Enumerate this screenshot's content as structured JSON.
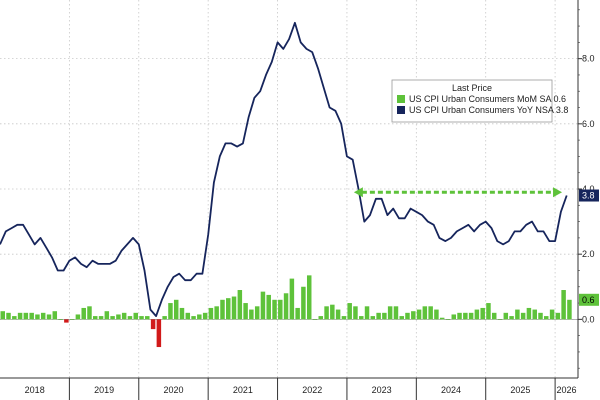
{
  "chart_data": {
    "type": "line",
    "title": "",
    "xlabel": "",
    "ylabel": "",
    "ylim": [
      -1.8,
      9.8
    ],
    "xlim": [
      2018.0,
      2026.33
    ],
    "y_ticks": [
      0.0,
      2.0,
      4.0,
      6.0,
      8.0
    ],
    "y_tick_labels": [
      "0.0",
      "2.0",
      "4.0",
      "6.0",
      "8.0"
    ],
    "x_ticks": [
      "2018",
      "2019",
      "2020",
      "2021",
      "2022",
      "2023",
      "2024",
      "2025",
      "2026"
    ],
    "grid": true,
    "legend_position": "upper-right",
    "legend_title": "Last Price",
    "series": [
      {
        "name": "US CPI Urban Consumers MoM SA",
        "type": "bar",
        "color": "#5ec23a",
        "last_value": "0.6",
        "x": [
          2018.0,
          2018.083,
          2018.167,
          2018.25,
          2018.333,
          2018.417,
          2018.5,
          2018.583,
          2018.667,
          2018.75,
          2018.833,
          2018.917,
          2019.0,
          2019.083,
          2019.167,
          2019.25,
          2019.333,
          2019.417,
          2019.5,
          2019.583,
          2019.667,
          2019.75,
          2019.833,
          2019.917,
          2020.0,
          2020.083,
          2020.167,
          2020.25,
          2020.333,
          2020.417,
          2020.5,
          2020.583,
          2020.667,
          2020.75,
          2020.833,
          2020.917,
          2021.0,
          2021.083,
          2021.167,
          2021.25,
          2021.333,
          2021.417,
          2021.5,
          2021.583,
          2021.667,
          2021.75,
          2021.833,
          2021.917,
          2022.0,
          2022.083,
          2022.167,
          2022.25,
          2022.333,
          2022.417,
          2022.5,
          2022.583,
          2022.667,
          2022.75,
          2022.833,
          2022.917,
          2023.0,
          2023.083,
          2023.167,
          2023.25,
          2023.333,
          2023.417,
          2023.5,
          2023.583,
          2023.667,
          2023.75,
          2023.833,
          2023.917,
          2024.0,
          2024.083,
          2024.167,
          2024.25,
          2024.333,
          2024.417,
          2024.5,
          2024.583,
          2024.667,
          2024.75,
          2024.833,
          2024.917,
          2025.0,
          2025.083,
          2025.167,
          2025.25,
          2025.333,
          2025.417,
          2025.5,
          2025.583,
          2025.667,
          2025.75,
          2025.833,
          2025.917,
          2026.0,
          2026.083,
          2026.167
        ],
        "values": [
          0.25,
          0.2,
          0.1,
          0.2,
          0.2,
          0.2,
          0.15,
          0.2,
          0.15,
          0.25,
          0.0,
          -0.1,
          0.0,
          0.15,
          0.35,
          0.4,
          0.1,
          0.1,
          0.25,
          0.1,
          0.15,
          0.2,
          0.1,
          0.2,
          0.1,
          0.1,
          -0.3,
          -0.85,
          0.1,
          0.5,
          0.6,
          0.35,
          0.2,
          0.1,
          0.15,
          0.2,
          0.35,
          0.4,
          0.6,
          0.65,
          0.7,
          0.9,
          0.5,
          0.3,
          0.4,
          0.85,
          0.75,
          0.6,
          0.6,
          0.8,
          1.25,
          0.35,
          1.0,
          1.35,
          0.0,
          0.1,
          0.4,
          0.45,
          0.3,
          0.1,
          0.5,
          0.4,
          0.1,
          0.4,
          0.1,
          0.2,
          0.2,
          0.4,
          0.4,
          0.1,
          0.2,
          0.25,
          0.3,
          0.4,
          0.4,
          0.3,
          0.05,
          0.0,
          0.15,
          0.2,
          0.2,
          0.2,
          0.3,
          0.35,
          0.5,
          0.2,
          0.0,
          0.2,
          0.1,
          0.3,
          0.2,
          0.35,
          0.3,
          0.2,
          0.1,
          0.3,
          0.2,
          0.9,
          0.6
        ]
      },
      {
        "name": "US CPI Urban Consumers YoY NSA",
        "type": "line",
        "color": "#16255c",
        "last_value": "3.8",
        "x": [
          2018.0,
          2018.083,
          2018.167,
          2018.25,
          2018.333,
          2018.417,
          2018.5,
          2018.583,
          2018.667,
          2018.75,
          2018.833,
          2018.917,
          2019.0,
          2019.083,
          2019.167,
          2019.25,
          2019.333,
          2019.417,
          2019.5,
          2019.583,
          2019.667,
          2019.75,
          2019.833,
          2019.917,
          2020.0,
          2020.083,
          2020.167,
          2020.25,
          2020.333,
          2020.417,
          2020.5,
          2020.583,
          2020.667,
          2020.75,
          2020.833,
          2020.917,
          2021.0,
          2021.083,
          2021.167,
          2021.25,
          2021.333,
          2021.417,
          2021.5,
          2021.583,
          2021.667,
          2021.75,
          2021.833,
          2021.917,
          2022.0,
          2022.083,
          2022.167,
          2022.25,
          2022.333,
          2022.417,
          2022.5,
          2022.583,
          2022.667,
          2022.75,
          2022.833,
          2022.917,
          2023.0,
          2023.083,
          2023.167,
          2023.25,
          2023.333,
          2023.417,
          2023.5,
          2023.583,
          2023.667,
          2023.75,
          2023.833,
          2023.917,
          2024.0,
          2024.083,
          2024.167,
          2024.25,
          2024.333,
          2024.417,
          2024.5,
          2024.583,
          2024.667,
          2024.75,
          2024.833,
          2024.917,
          2025.0,
          2025.083,
          2025.167,
          2025.25,
          2025.333,
          2025.417,
          2025.5,
          2025.583,
          2025.667,
          2025.75,
          2025.833,
          2025.917,
          2026.0,
          2026.083,
          2026.167
        ],
        "values": [
          2.3,
          2.7,
          2.8,
          2.9,
          2.9,
          2.6,
          2.3,
          2.5,
          2.2,
          1.9,
          1.5,
          1.5,
          1.8,
          1.9,
          1.7,
          1.6,
          1.8,
          1.7,
          1.7,
          1.7,
          1.8,
          2.1,
          2.3,
          2.5,
          2.3,
          1.5,
          0.3,
          0.1,
          0.6,
          1.0,
          1.3,
          1.4,
          1.2,
          1.2,
          1.4,
          1.4,
          2.6,
          4.2,
          5.0,
          5.4,
          5.4,
          5.3,
          5.4,
          6.2,
          6.8,
          7.0,
          7.5,
          7.9,
          8.5,
          8.3,
          8.6,
          9.1,
          8.5,
          8.3,
          8.2,
          7.7,
          7.1,
          6.5,
          6.4,
          6.0,
          5.0,
          4.9,
          4.0,
          3.0,
          3.2,
          3.7,
          3.7,
          3.2,
          3.4,
          3.1,
          3.1,
          3.4,
          3.3,
          3.2,
          3.0,
          2.9,
          2.5,
          2.4,
          2.5,
          2.7,
          2.8,
          2.9,
          2.7,
          2.9,
          3.0,
          2.8,
          2.4,
          2.3,
          2.4,
          2.7,
          2.7,
          2.9,
          3.0,
          2.7,
          2.7,
          2.4,
          2.4,
          3.3,
          3.8
        ]
      }
    ],
    "annotations": [
      {
        "type": "horizontal-dashed-arrow",
        "color": "#5ec23a",
        "y": 3.9,
        "x_start": 2023.1,
        "x_end": 2026.1
      }
    ],
    "right_axis_tags": [
      {
        "label": "3.8",
        "y": 3.8,
        "bg": "#16255c",
        "fg": "#ffffff"
      },
      {
        "label": "0.6",
        "y": 0.6,
        "bg": "#5ec23a",
        "fg": "#000000"
      }
    ]
  }
}
